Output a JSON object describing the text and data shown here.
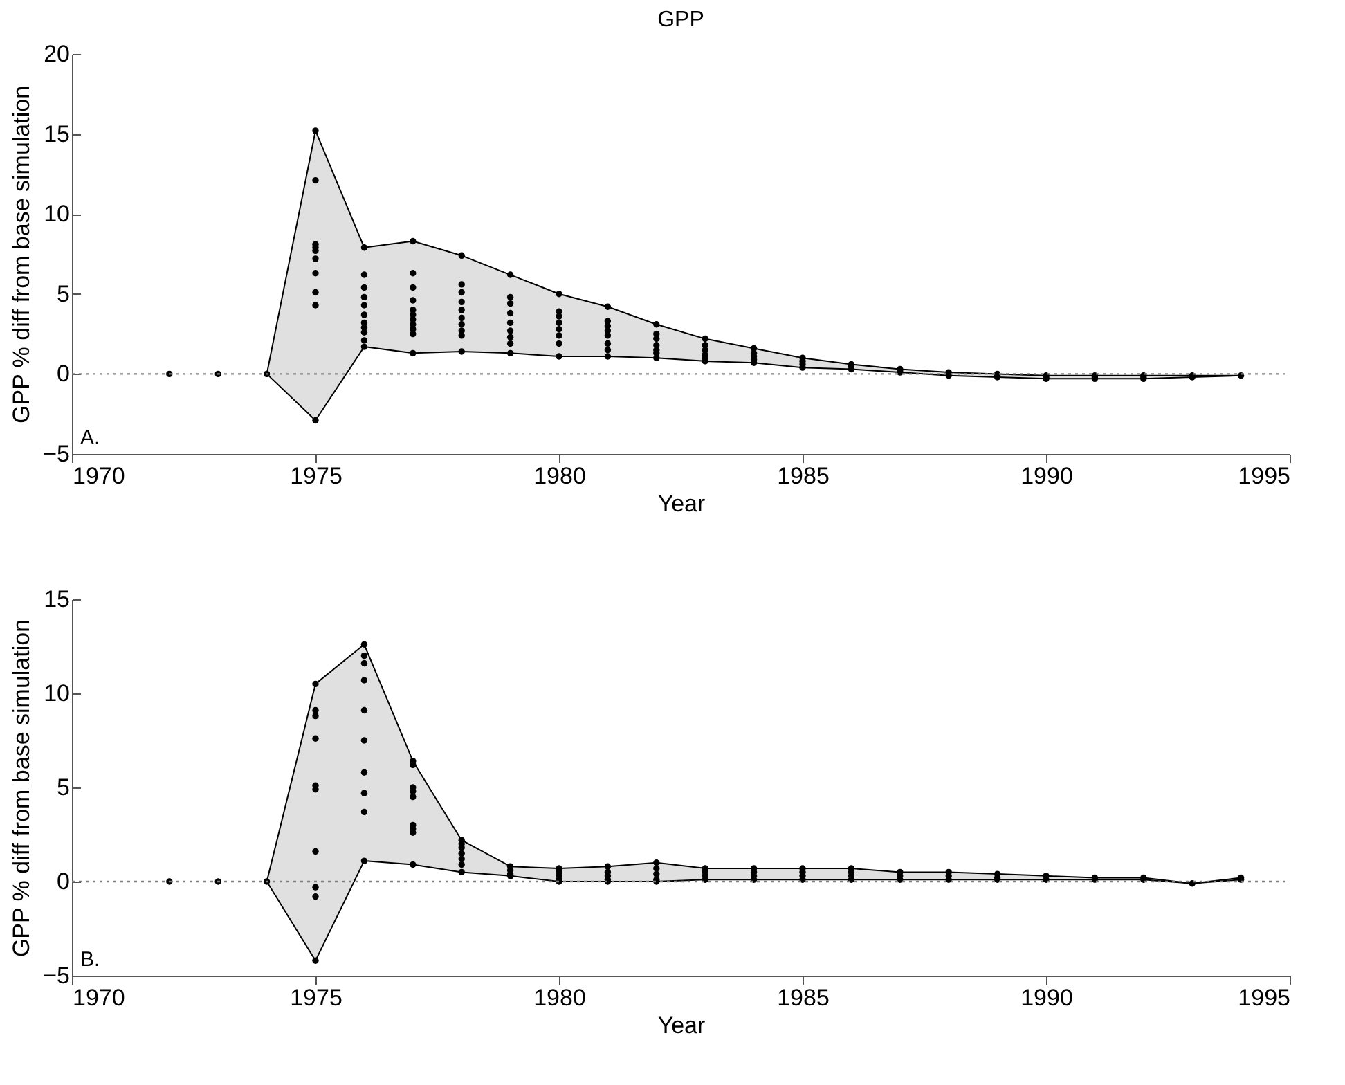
{
  "chart_data": [
    {
      "type": "scatter",
      "title": "GPP",
      "xlabel": "Year",
      "ylabel": "GPP % diff from base simulation",
      "xlim": [
        1970,
        1995
      ],
      "xticks": [
        1970,
        1975,
        1980,
        1985,
        1990,
        1995
      ],
      "ylim": [
        -5,
        20
      ],
      "yticks": [
        -5,
        0,
        5,
        10,
        15,
        20
      ],
      "grid": false,
      "marker": "circle",
      "annotations": [
        "A."
      ],
      "ref_lines": [
        {
          "axis": "y",
          "value": 0,
          "color": "#808080",
          "line_style": "dotted"
        }
      ],
      "series": [
        {
          "type": "line",
          "color": "#000000",
          "marker": "none",
          "x": [
            1974,
            1975,
            1976,
            1977,
            1978,
            1979,
            1980,
            1981,
            1982,
            1983,
            1984,
            1985,
            1986,
            1987,
            1988,
            1989,
            1990,
            1991,
            1992,
            1993,
            1994
          ],
          "values": [
            0,
            -2.9,
            1.7,
            1.3,
            1.4,
            1.3,
            1.1,
            1.1,
            1.0,
            0.8,
            0.7,
            0.4,
            0.3,
            0.1,
            -0.1,
            -0.2,
            -0.3,
            -0.3,
            -0.3,
            -0.2,
            -0.1
          ]
        },
        {
          "type": "line",
          "color": "#000000",
          "marker": "none",
          "x": [
            1974,
            1975,
            1976,
            1977,
            1978,
            1979,
            1980,
            1981,
            1982,
            1983,
            1984,
            1985,
            1986,
            1987,
            1988,
            1989,
            1990,
            1991,
            1992,
            1993,
            1994
          ],
          "values": [
            0,
            15.2,
            7.9,
            8.3,
            7.4,
            6.2,
            5.0,
            4.2,
            3.1,
            2.2,
            1.6,
            1.0,
            0.6,
            0.3,
            0.1,
            0,
            -0.1,
            -0.1,
            -0.1,
            -0.1,
            -0.1
          ],
          "lower": [
            0,
            -2.9,
            1.7,
            1.3,
            1.4,
            1.3,
            1.1,
            1.1,
            1.0,
            0.8,
            0.7,
            0.4,
            0.3,
            0.1,
            -0.1,
            -0.2,
            -0.3,
            -0.3,
            -0.3,
            -0.2,
            -0.1
          ],
          "upper": [
            0,
            15.2,
            7.9,
            8.3,
            7.4,
            6.2,
            5.0,
            4.2,
            3.1,
            2.2,
            1.6,
            1.0,
            0.6,
            0.3,
            0.1,
            0,
            -0.1,
            -0.1,
            -0.1,
            -0.1,
            -0.1
          ]
        },
        {
          "color": "#000000",
          "x": [
            1972,
            1973,
            1974,
            1975,
            1975,
            1975,
            1975,
            1975,
            1975,
            1975,
            1975,
            1975,
            1975,
            1976,
            1976,
            1976,
            1976,
            1976,
            1976,
            1976,
            1976,
            1976,
            1976,
            1976,
            1977,
            1977,
            1977,
            1977,
            1977,
            1977,
            1977,
            1977,
            1977,
            1977,
            1977,
            1978,
            1978,
            1978,
            1978,
            1978,
            1978,
            1978,
            1978,
            1978,
            1978,
            1979,
            1979,
            1979,
            1979,
            1979,
            1979,
            1979,
            1979,
            1979,
            1980,
            1980,
            1980,
            1980,
            1980,
            1980,
            1980,
            1980,
            1981,
            1981,
            1981,
            1981,
            1981,
            1981,
            1981,
            1981,
            1982,
            1982,
            1982,
            1982,
            1982,
            1982,
            1982,
            1983,
            1983,
            1983,
            1983,
            1983,
            1983,
            1984,
            1984,
            1984,
            1984,
            1984,
            1985,
            1985,
            1985,
            1985,
            1986,
            1986,
            1986,
            1987,
            1987,
            1987,
            1988,
            1988,
            1989,
            1989,
            1989,
            1990,
            1990,
            1990,
            1991,
            1991,
            1991,
            1992,
            1992,
            1992,
            1993,
            1993,
            1994
          ],
          "values": [
            0,
            0,
            0,
            15.2,
            12.1,
            8.1,
            7.9,
            7.7,
            7.2,
            6.3,
            5.1,
            4.3,
            -2.9,
            7.9,
            6.2,
            5.4,
            4.8,
            4.3,
            3.7,
            3.2,
            2.9,
            2.6,
            2.1,
            1.7,
            8.3,
            6.3,
            5.4,
            4.6,
            4.0,
            3.7,
            3.4,
            3.1,
            2.8,
            2.5,
            1.3,
            7.4,
            5.6,
            5.1,
            4.5,
            4.0,
            3.5,
            3.1,
            2.7,
            2.4,
            1.4,
            6.2,
            4.8,
            4.4,
            3.8,
            3.2,
            2.7,
            2.3,
            1.9,
            1.3,
            5.0,
            3.9,
            3.6,
            3.2,
            2.8,
            2.4,
            1.9,
            1.1,
            4.2,
            3.3,
            3.0,
            2.7,
            2.4,
            1.9,
            1.5,
            1.1,
            3.1,
            2.5,
            2.2,
            1.8,
            1.5,
            1.3,
            1.0,
            2.2,
            1.8,
            1.5,
            1.2,
            1.0,
            0.8,
            1.6,
            1.3,
            1.1,
            0.9,
            0.7,
            1.0,
            0.8,
            0.6,
            0.4,
            0.6,
            0.5,
            0.3,
            0.3,
            0.2,
            0.1,
            0.1,
            -0.1,
            0,
            -0.1,
            -0.2,
            -0.1,
            -0.2,
            -0.3,
            -0.1,
            -0.2,
            -0.3,
            -0.1,
            -0.2,
            -0.3,
            -0.1,
            -0.2,
            -0.1
          ]
        }
      ]
    },
    {
      "type": "scatter",
      "xlabel": "Year",
      "ylabel": "GPP % diff from base simulation",
      "xlim": [
        1970,
        1995
      ],
      "xticks": [
        1970,
        1975,
        1980,
        1985,
        1990,
        1995
      ],
      "ylim": [
        -5,
        15
      ],
      "yticks": [
        -5,
        0,
        5,
        10,
        15
      ],
      "grid": false,
      "marker": "circle",
      "annotations": [
        "B."
      ],
      "ref_lines": [
        {
          "axis": "y",
          "value": 0,
          "color": "#808080",
          "line_style": "dotted"
        }
      ],
      "series": [
        {
          "type": "line",
          "color": "#000000",
          "marker": "none",
          "x": [
            1974,
            1975,
            1976,
            1977,
            1978,
            1979,
            1980,
            1981,
            1982,
            1983,
            1984,
            1985,
            1986,
            1987,
            1988,
            1989,
            1990,
            1991,
            1992,
            1993,
            1994
          ],
          "values": [
            0,
            -4.2,
            1.1,
            0.9,
            0.5,
            0.3,
            0,
            0,
            0,
            0.1,
            0.1,
            0.1,
            0.1,
            0.1,
            0.1,
            0.1,
            0.1,
            0.1,
            0.1,
            -0.1,
            0.1
          ]
        },
        {
          "type": "line",
          "color": "#000000",
          "marker": "none",
          "x": [
            1974,
            1975,
            1976,
            1977,
            1978,
            1979,
            1980,
            1981,
            1982,
            1983,
            1984,
            1985,
            1986,
            1987,
            1988,
            1989,
            1990,
            1991,
            1992,
            1993,
            1994
          ],
          "values": [
            0,
            10.5,
            12.6,
            6.4,
            2.2,
            0.8,
            0.7,
            0.8,
            1.0,
            0.7,
            0.7,
            0.7,
            0.7,
            0.5,
            0.5,
            0.4,
            0.3,
            0.2,
            0.2,
            -0.1,
            0.2
          ],
          "lower": [
            0,
            -4.2,
            1.1,
            0.9,
            0.5,
            0.3,
            0,
            0,
            0,
            0.1,
            0.1,
            0.1,
            0.1,
            0.1,
            0.1,
            0.1,
            0.1,
            0.1,
            0.1,
            -0.1,
            0.1
          ],
          "upper": [
            0,
            10.5,
            12.6,
            6.4,
            2.2,
            0.8,
            0.7,
            0.8,
            1.0,
            0.7,
            0.7,
            0.7,
            0.7,
            0.5,
            0.5,
            0.4,
            0.3,
            0.2,
            0.2,
            -0.1,
            0.2
          ]
        },
        {
          "color": "#000000",
          "x": [
            1972,
            1973,
            1974,
            1975,
            1975,
            1975,
            1975,
            1975,
            1975,
            1975,
            1975,
            1975,
            1975,
            1976,
            1976,
            1976,
            1976,
            1976,
            1976,
            1976,
            1976,
            1976,
            1976,
            1977,
            1977,
            1977,
            1977,
            1977,
            1977,
            1977,
            1977,
            1977,
            1978,
            1978,
            1978,
            1978,
            1978,
            1978,
            1978,
            1979,
            1979,
            1979,
            1979,
            1980,
            1980,
            1980,
            1980,
            1980,
            1981,
            1981,
            1981,
            1981,
            1981,
            1982,
            1982,
            1982,
            1982,
            1982,
            1983,
            1983,
            1983,
            1983,
            1984,
            1984,
            1984,
            1984,
            1985,
            1985,
            1985,
            1985,
            1986,
            1986,
            1986,
            1986,
            1987,
            1987,
            1987,
            1988,
            1988,
            1988,
            1989,
            1989,
            1989,
            1990,
            1990,
            1991,
            1991,
            1992,
            1992,
            1993,
            1994,
            1994
          ],
          "values": [
            0,
            0,
            0,
            10.5,
            9.1,
            8.8,
            7.6,
            5.1,
            4.9,
            1.6,
            -0.3,
            -0.8,
            -4.2,
            12.6,
            12.0,
            11.6,
            10.7,
            9.1,
            7.5,
            5.8,
            4.7,
            3.7,
            1.1,
            6.4,
            6.2,
            5.0,
            4.8,
            4.5,
            3.0,
            2.8,
            2.6,
            0.9,
            2.2,
            2.0,
            1.8,
            1.5,
            1.2,
            0.9,
            0.5,
            0.8,
            0.6,
            0.4,
            0.3,
            0.7,
            0.5,
            0.3,
            0.1,
            0,
            0.8,
            0.5,
            0.3,
            0.1,
            0,
            1.0,
            0.7,
            0.4,
            0.1,
            0,
            0.7,
            0.5,
            0.3,
            0.1,
            0.7,
            0.5,
            0.3,
            0.1,
            0.7,
            0.5,
            0.3,
            0.1,
            0.7,
            0.5,
            0.3,
            0.1,
            0.5,
            0.3,
            0.1,
            0.5,
            0.3,
            0.1,
            0.4,
            0.2,
            0.1,
            0.3,
            0.1,
            0.2,
            0.1,
            0.2,
            0.1,
            -0.1,
            0.2,
            0.1
          ]
        }
      ]
    }
  ]
}
